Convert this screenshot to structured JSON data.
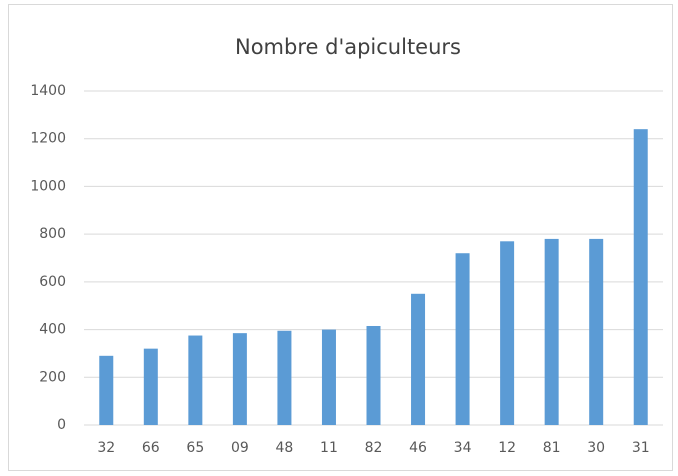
{
  "chart_data": {
    "type": "bar",
    "title": "Nombre d'apiculteurs",
    "categories": [
      "32",
      "66",
      "65",
      "09",
      "48",
      "11",
      "82",
      "46",
      "34",
      "12",
      "81",
      "30",
      "31"
    ],
    "values": [
      290,
      320,
      375,
      385,
      395,
      400,
      415,
      550,
      720,
      770,
      780,
      780,
      1240
    ],
    "color": "#5b9bd5",
    "ylim": [
      0,
      1400
    ],
    "yticks": [
      0,
      200,
      400,
      600,
      800,
      1000,
      1200,
      1400
    ],
    "grid": true
  }
}
